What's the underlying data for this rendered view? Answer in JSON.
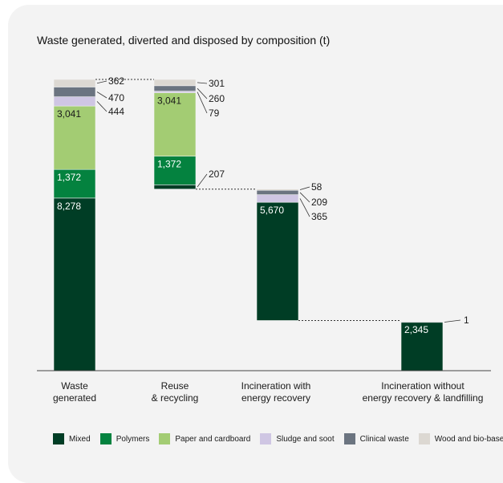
{
  "colors": {
    "mixed": "#003d25",
    "polymers": "#04823f",
    "paper": "#a3cc73",
    "sludge": "#cfc6e3",
    "clinical": "#6b7480",
    "wood": "#dcd8d2"
  },
  "chart_data": {
    "type": "bar",
    "title": "Waste generated, diverted and disposed by composition (t)",
    "categories": [
      "Waste\ngenerated",
      "Reuse\n& recycling",
      "Incineration with\nenergy recovery",
      "Incineration without\nenergy recovery & landfilling"
    ],
    "series": [
      {
        "key": "mixed",
        "name": "Mixed",
        "values": [
          8278,
          207,
          5670,
          2345
        ]
      },
      {
        "key": "polymers",
        "name": "Polymers",
        "values": [
          1372,
          1372,
          0,
          0
        ]
      },
      {
        "key": "paper",
        "name": "Paper and cardboard",
        "values": [
          3041,
          3041,
          0,
          0
        ]
      },
      {
        "key": "sludge",
        "name": "Sludge and soot",
        "values": [
          444,
          79,
          365,
          0
        ]
      },
      {
        "key": "clinical",
        "name": "Clinical waste",
        "values": [
          470,
          260,
          209,
          1
        ]
      },
      {
        "key": "wood",
        "name": "Wood and bio-base",
        "values": [
          362,
          301,
          58,
          0
        ]
      }
    ],
    "value_labels": [
      {
        "inside": [
          "8,278",
          "1,372",
          "3,041"
        ],
        "outside": [
          "444",
          "470",
          "362"
        ]
      },
      {
        "inside": [
          "",
          "1,372",
          "3,041"
        ],
        "outside": [
          "207",
          "79",
          "260",
          "301"
        ]
      },
      {
        "inside": [
          "5,670"
        ],
        "outside": [
          "365",
          "209",
          "58"
        ]
      },
      {
        "inside": [
          "2,345"
        ],
        "outside": [
          "1"
        ]
      }
    ]
  }
}
